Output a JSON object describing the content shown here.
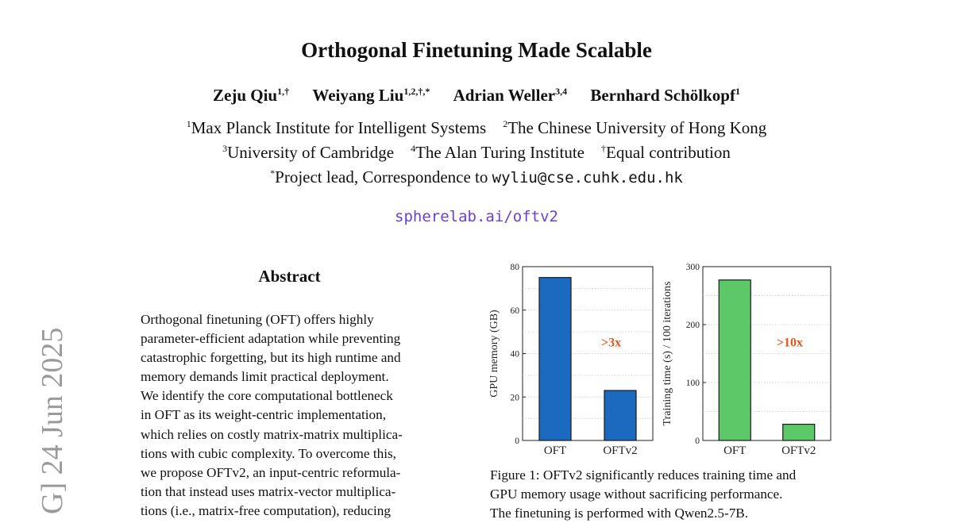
{
  "paper": {
    "title": "Orthogonal Finetuning Made Scalable",
    "authors": [
      {
        "name": "Zeju Qiu",
        "sup": "1,†"
      },
      {
        "name": "Weiyang Liu",
        "sup": "1,2,†,*"
      },
      {
        "name": "Adrian Weller",
        "sup": "3,4"
      },
      {
        "name": "Bernhard Schölkopf",
        "sup": "1"
      }
    ],
    "affiliations": {
      "a1": {
        "sup": "1",
        "text": "Max Planck Institute for Intelligent Systems"
      },
      "a2": {
        "sup": "2",
        "text": "The Chinese University of Hong Kong"
      },
      "a3": {
        "sup": "3",
        "text": "University of Cambridge"
      },
      "a4": {
        "sup": "4",
        "text": "The Alan Turing Institute"
      },
      "a5": {
        "sup": "†",
        "text": "Equal contribution"
      },
      "a6": {
        "sup": "*",
        "text": "Project lead, Correspondence to "
      },
      "email": "wyliu@cse.cuhk.edu.hk"
    },
    "url": "spherelab.ai/oftv2",
    "arxiv_stamp": "G]  24 Jun 2025",
    "abstract_heading": "Abstract",
    "abstract_lines": [
      "Orthogonal finetuning (OFT) offers highly",
      "parameter-efficient adaptation while preventing",
      "catastrophic forgetting, but its high runtime and",
      "memory demands limit practical deployment.",
      "We identify the core computational bottleneck",
      "in OFT as its weight-centric implementation,",
      "which relies on costly matrix-matrix multiplica-",
      "tions with cubic complexity. To overcome this,",
      "we propose OFTv2, an input-centric reformula-",
      "tion that instead uses matrix-vector multiplica-",
      "tions (i.e., matrix-free computation), reducing"
    ],
    "caption_lines": [
      "Figure 1: OFTv2 significantly reduces training time and",
      "GPU memory usage without sacrificing performance.",
      "The finetuning is performed with Qwen2.5-7B."
    ]
  },
  "colors": {
    "bar_blue": "#1b6ac0",
    "bar_green": "#5cc867",
    "annotation": "#e8541b",
    "url": "#6a3fd6",
    "stamp": "#9a9a9a"
  },
  "chart_data": [
    {
      "type": "bar",
      "categories": [
        "OFT",
        "OFTv2"
      ],
      "values": [
        75,
        23
      ],
      "ylabel": "GPU memory (GB)",
      "ylim": [
        0,
        80
      ],
      "yticks": [
        0,
        20,
        40,
        60,
        80
      ],
      "annotation": ">3x",
      "color": "#1b6ac0",
      "grid": true
    },
    {
      "type": "bar",
      "categories": [
        "OFT",
        "OFTv2"
      ],
      "values": [
        277,
        28
      ],
      "ylabel": "Training time (s) / 100 iterations",
      "ylim": [
        0,
        300
      ],
      "yticks": [
        0,
        100,
        200,
        300
      ],
      "annotation": ">10x",
      "color": "#5cc867",
      "grid": true
    }
  ]
}
